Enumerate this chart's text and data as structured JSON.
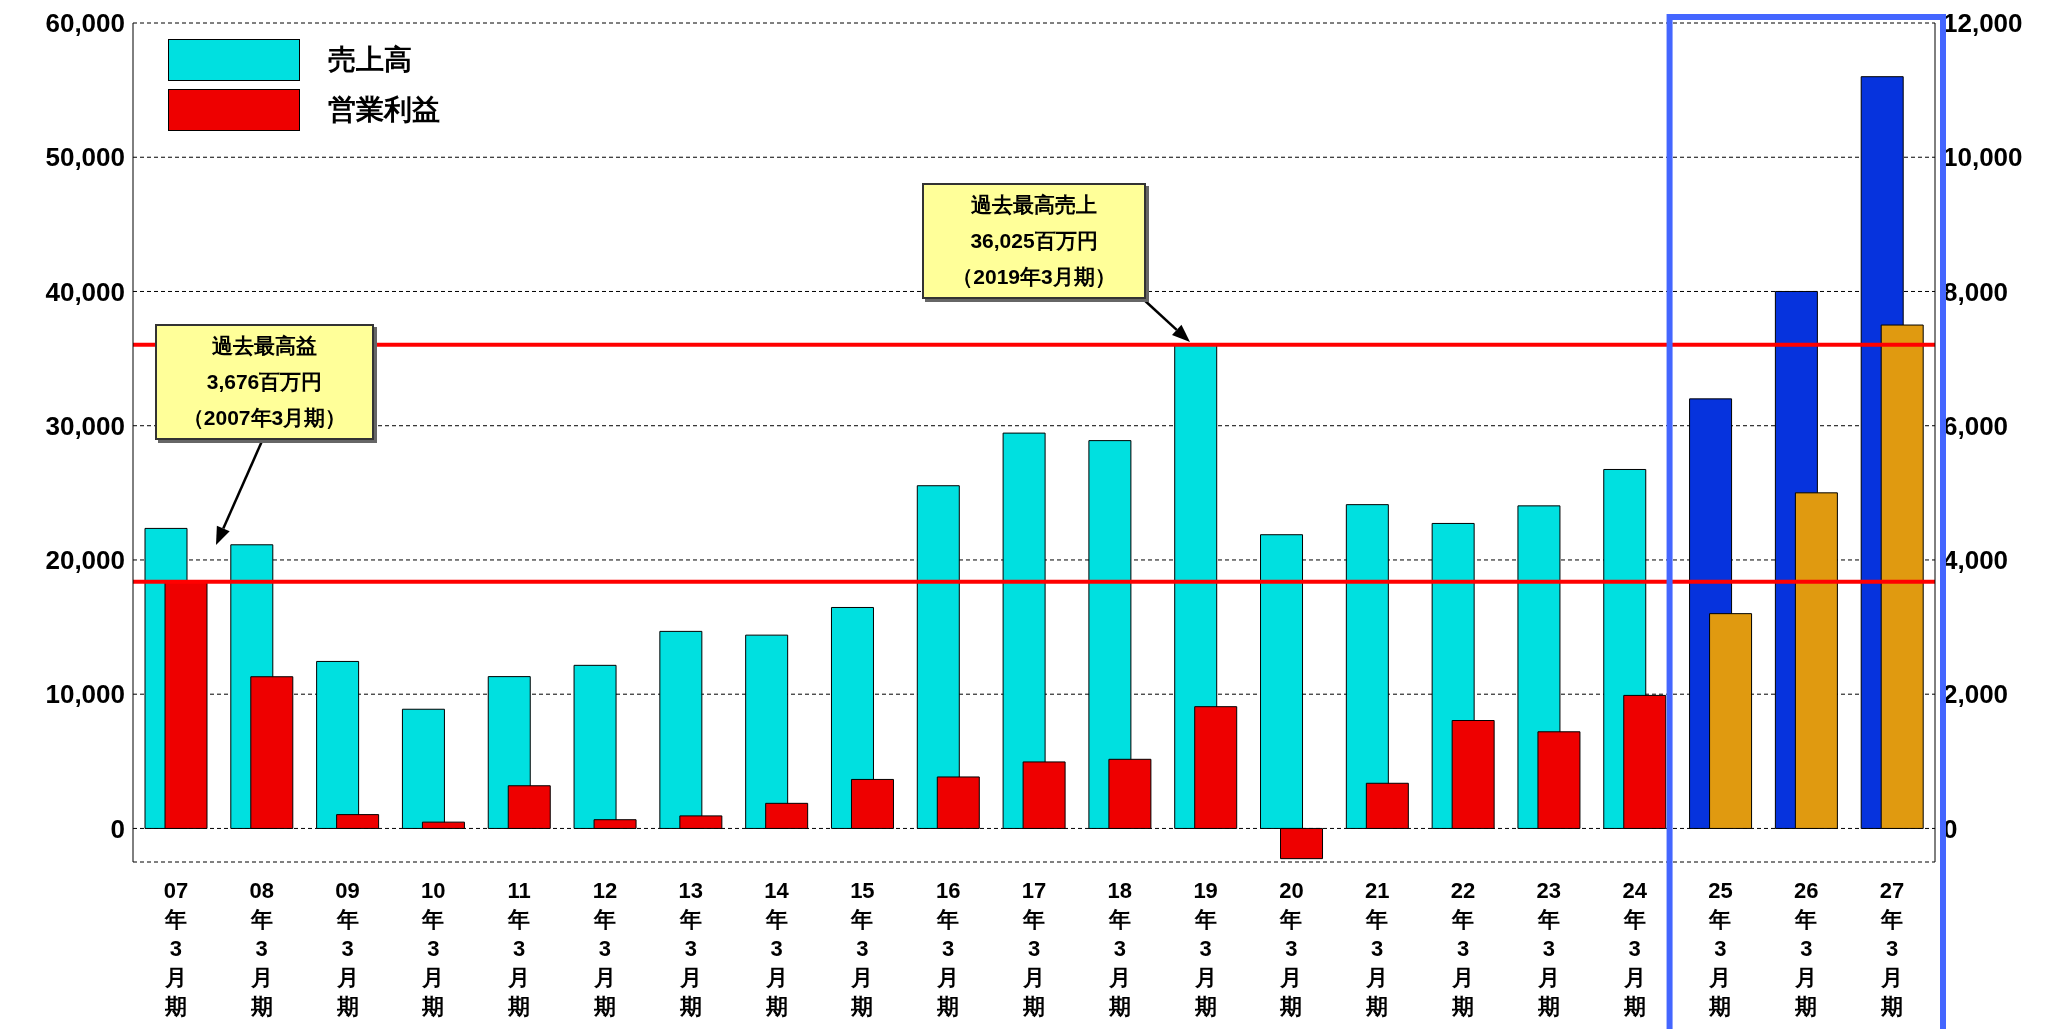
{
  "chart_data": {
    "type": "bar",
    "categories": [
      "07年3月期",
      "08年3月期",
      "09年3月期",
      "10年3月期",
      "11年3月期",
      "12年3月期",
      "13年3月期",
      "14年3月期",
      "15年3月期",
      "16年3月期",
      "17年3月期",
      "18年3月期",
      "19年3月期",
      "20年3月期",
      "21年3月期",
      "22年3月期",
      "23年3月期",
      "24年3月期",
      "25年3月期",
      "26年3月期",
      "27年3月期"
    ],
    "series": [
      {
        "name": "売上高",
        "color": "#00e0e0",
        "colors": [
          "#00e0e0",
          "#00e0e0",
          "#00e0e0",
          "#00e0e0",
          "#00e0e0",
          "#00e0e0",
          "#00e0e0",
          "#00e0e0",
          "#00e0e0",
          "#00e0e0",
          "#00e0e0",
          "#00e0e0",
          "#00e0e0",
          "#00e0e0",
          "#00e0e0",
          "#00e0e0",
          "#00e0e0",
          "#00e0e0",
          "#0633dd",
          "#0633dd",
          "#0633dd"
        ],
        "values": [
          22350,
          21130,
          12440,
          8880,
          11310,
          12150,
          14680,
          14400,
          16460,
          25530,
          29450,
          28890,
          36025,
          21880,
          24120,
          22720,
          24030,
          26740,
          32000,
          40000,
          56000
        ]
      },
      {
        "name": "営業利益",
        "color": "#ee0000",
        "axis": "y2",
        "colors": [
          "#ee0000",
          "#ee0000",
          "#ee0000",
          "#ee0000",
          "#ee0000",
          "#ee0000",
          "#ee0000",
          "#ee0000",
          "#ee0000",
          "#ee0000",
          "#ee0000",
          "#ee0000",
          "#ee0000",
          "#ee0000",
          "#ee0000",
          "#ee0000",
          "#ee0000",
          "#ee0000",
          "#e09a10",
          "#e09a10",
          "#e09a10"
        ],
        "values": [
          3676,
          2260,
          206,
          94,
          636,
          130,
          187,
          374,
          730,
          767,
          991,
          1030,
          1814,
          -450,
          673,
          1608,
          1440,
          1982,
          3200,
          5000,
          7500
        ]
      }
    ],
    "ylim": [
      -2500,
      60000
    ],
    "yticks": [
      0,
      {
        "value": 10000,
        "label": "10,000"
      },
      {
        "value": 20000,
        "label": "20,000"
      },
      {
        "value": 30000,
        "label": "30,000"
      },
      {
        "value": 40000,
        "label": "40,000"
      },
      {
        "value": 50000,
        "label": "50,000"
      },
      {
        "value": 60000,
        "label": "60,000"
      }
    ],
    "y2lim": [
      -500,
      12000
    ],
    "y2ticks": [
      0,
      {
        "value": 2000,
        "label": "2,000"
      },
      {
        "value": 4000,
        "label": "4,000"
      },
      {
        "value": 6000,
        "label": "6,000"
      },
      {
        "value": 8000,
        "label": "8,000"
      },
      {
        "value": 10000,
        "label": "10,000"
      },
      {
        "value": 12000,
        "label": "12,000"
      }
    ],
    "grid": "y",
    "legend": "top left",
    "ref_lines": [
      {
        "axis": "y2",
        "value": 3676,
        "color": "#ff0000"
      },
      {
        "axis": "y",
        "value": 36025,
        "color": "#ff0000"
      }
    ],
    "annotations": [
      "過去最高益3,676百万円（2007年3月期）",
      "過去最高売上36,025百万円（2019年3月期）"
    ]
  }
}
